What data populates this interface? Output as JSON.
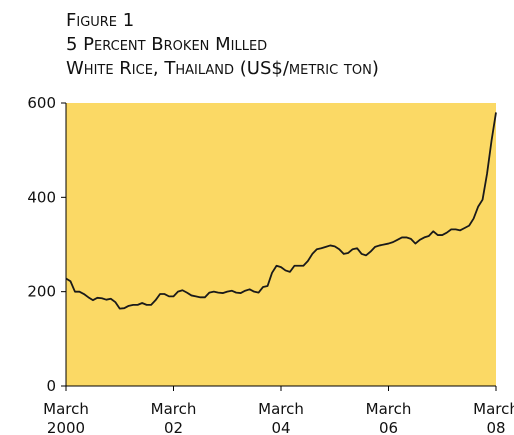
{
  "chart_data": {
    "type": "line",
    "title": [
      "Figure 1",
      "5 Percent Broken Milled",
      "White Rice, Thailand (US$/metric ton)"
    ],
    "x": [
      "2000-03",
      "2000-04",
      "2000-05",
      "2000-06",
      "2000-07",
      "2000-08",
      "2000-09",
      "2000-10",
      "2000-11",
      "2000-12",
      "2001-01",
      "2001-02",
      "2001-03",
      "2001-04",
      "2001-05",
      "2001-06",
      "2001-07",
      "2001-08",
      "2001-09",
      "2001-10",
      "2001-11",
      "2001-12",
      "2002-01",
      "2002-02",
      "2002-03",
      "2002-04",
      "2002-05",
      "2002-06",
      "2002-07",
      "2002-08",
      "2002-09",
      "2002-10",
      "2002-11",
      "2002-12",
      "2003-01",
      "2003-02",
      "2003-03",
      "2003-04",
      "2003-05",
      "2003-06",
      "2003-07",
      "2003-08",
      "2003-09",
      "2003-10",
      "2003-11",
      "2003-12",
      "2004-01",
      "2004-02",
      "2004-03",
      "2004-04",
      "2004-05",
      "2004-06",
      "2004-07",
      "2004-08",
      "2004-09",
      "2004-10",
      "2004-11",
      "2004-12",
      "2005-01",
      "2005-02",
      "2005-03",
      "2005-04",
      "2005-05",
      "2005-06",
      "2005-07",
      "2005-08",
      "2005-09",
      "2005-10",
      "2005-11",
      "2005-12",
      "2006-01",
      "2006-02",
      "2006-03",
      "2006-04",
      "2006-05",
      "2006-06",
      "2006-07",
      "2006-08",
      "2006-09",
      "2006-10",
      "2006-11",
      "2006-12",
      "2007-01",
      "2007-02",
      "2007-03",
      "2007-04",
      "2007-05",
      "2007-06",
      "2007-07",
      "2007-08",
      "2007-09",
      "2007-10",
      "2007-11",
      "2007-12",
      "2008-01",
      "2008-02",
      "2008-03"
    ],
    "series": [
      {
        "color": "#1a1a1a",
        "values": [
          228,
          222,
          200,
          200,
          195,
          188,
          182,
          187,
          186,
          183,
          185,
          178,
          164,
          165,
          170,
          172,
          172,
          176,
          172,
          172,
          182,
          195,
          195,
          190,
          190,
          200,
          203,
          198,
          192,
          190,
          188,
          188,
          198,
          200,
          198,
          197,
          200,
          202,
          198,
          197,
          202,
          205,
          200,
          198,
          210,
          212,
          240,
          255,
          252,
          245,
          242,
          255,
          255,
          255,
          265,
          280,
          290,
          292,
          295,
          298,
          296,
          290,
          280,
          282,
          290,
          292,
          280,
          277,
          285,
          295,
          298,
          300,
          302,
          305,
          310,
          315,
          315,
          312,
          302,
          310,
          315,
          318,
          328,
          320,
          320,
          325,
          332,
          332,
          330,
          335,
          340,
          355,
          380,
          395,
          450,
          520,
          580
        ]
      }
    ],
    "ylim": [
      0,
      600
    ],
    "yticks": [
      0,
      200,
      400,
      600
    ],
    "xticks": [
      {
        "value": "2000-03",
        "label": "March",
        "year": "2000"
      },
      {
        "value": "2002-03",
        "label": "March",
        "year": "02"
      },
      {
        "value": "2004-03",
        "label": "March",
        "year": "04"
      },
      {
        "value": "2006-03",
        "label": "March",
        "year": "06"
      },
      {
        "value": "2008-03",
        "label": "March",
        "year": "08"
      }
    ],
    "background": "#fbd965"
  }
}
